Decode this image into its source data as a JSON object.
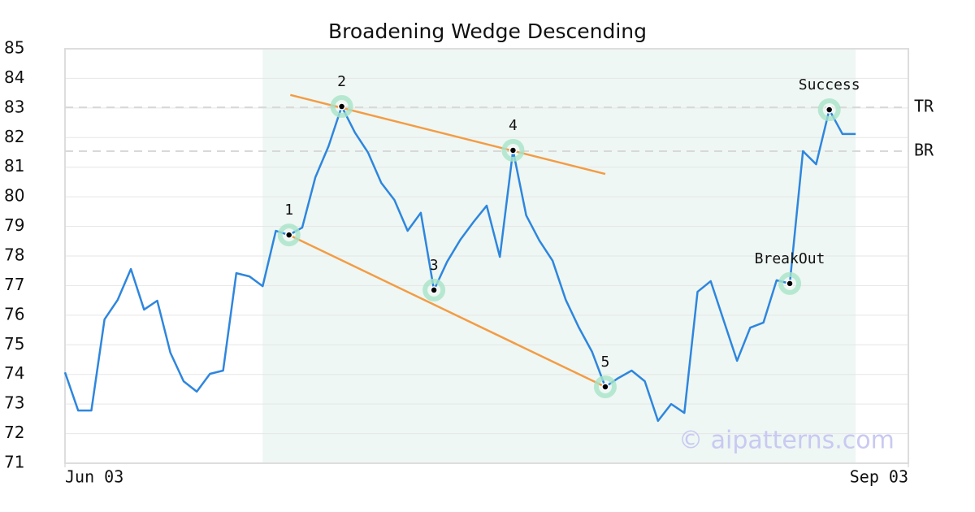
{
  "chart_data": {
    "type": "line",
    "title": "Broadening Wedge Descending",
    "x": [
      0,
      1,
      2,
      3,
      4,
      5,
      6,
      7,
      8,
      9,
      10,
      11,
      12,
      13,
      14,
      15,
      16,
      17,
      18,
      19,
      20,
      21,
      22,
      23,
      24,
      25,
      26,
      27,
      28,
      29,
      30,
      31,
      32,
      33,
      34,
      35,
      36,
      37,
      38,
      39,
      40,
      41,
      42,
      43,
      44,
      45,
      46,
      47,
      48,
      49,
      50,
      51,
      52,
      53,
      54,
      55,
      56,
      57,
      58,
      59,
      60
    ],
    "xlim": [
      0,
      64
    ],
    "xticks": [
      {
        "value": 0,
        "label": "Jun 03"
      },
      {
        "value": 64,
        "label": "Sep 03"
      }
    ],
    "ylim": [
      71,
      85
    ],
    "yticks": [
      71,
      72,
      73,
      74,
      75,
      76,
      77,
      78,
      79,
      80,
      81,
      82,
      83,
      84,
      85
    ],
    "grid": true,
    "series": [
      {
        "color": "#2e86de",
        "values": [
          74.07,
          72.78,
          72.78,
          75.86,
          76.52,
          77.56,
          76.19,
          76.49,
          74.73,
          73.77,
          73.42,
          74.02,
          74.13,
          77.42,
          77.31,
          76.98,
          78.85,
          78.71,
          78.96,
          80.66,
          81.71,
          83.05,
          82.17,
          81.49,
          80.47,
          79.89,
          78.85,
          79.46,
          76.85,
          77.81,
          78.55,
          79.15,
          79.7,
          77.97,
          81.57,
          79.37,
          78.52,
          77.84,
          76.52,
          75.58,
          74.76,
          73.58,
          73.88,
          74.13,
          73.77,
          72.43,
          73.0,
          72.7,
          76.79,
          77.15,
          75.8,
          74.46,
          75.58,
          75.75,
          77.18,
          77.07,
          81.54,
          81.1,
          82.94,
          82.12,
          82.12
        ]
      }
    ],
    "shaded_region": {
      "x": [
        15,
        60
      ],
      "color": "#eef7f3"
    },
    "trend_lines": [
      {
        "x": [
          17.1,
          41
        ],
        "y": [
          83.44,
          80.77
        ],
        "color": "#f39c45"
      },
      {
        "x": [
          17,
          41
        ],
        "y": [
          78.71,
          73.58
        ],
        "color": "#f39c45"
      }
    ],
    "levels": [
      {
        "label": "TR",
        "value": 83.02
      },
      {
        "label": "BR",
        "value": 81.54
      }
    ],
    "annotations": [
      {
        "label": "1",
        "x": 17,
        "y": 78.71
      },
      {
        "label": "2",
        "x": 21,
        "y": 83.05
      },
      {
        "label": "3",
        "x": 28,
        "y": 76.85
      },
      {
        "label": "4",
        "x": 34,
        "y": 81.57
      },
      {
        "label": "5",
        "x": 41,
        "y": 73.58
      },
      {
        "label": "BreakOut",
        "x": 55,
        "y": 77.07
      },
      {
        "label": "Success",
        "x": 58,
        "y": 82.94
      }
    ],
    "watermark": "© aipatterns.com"
  }
}
